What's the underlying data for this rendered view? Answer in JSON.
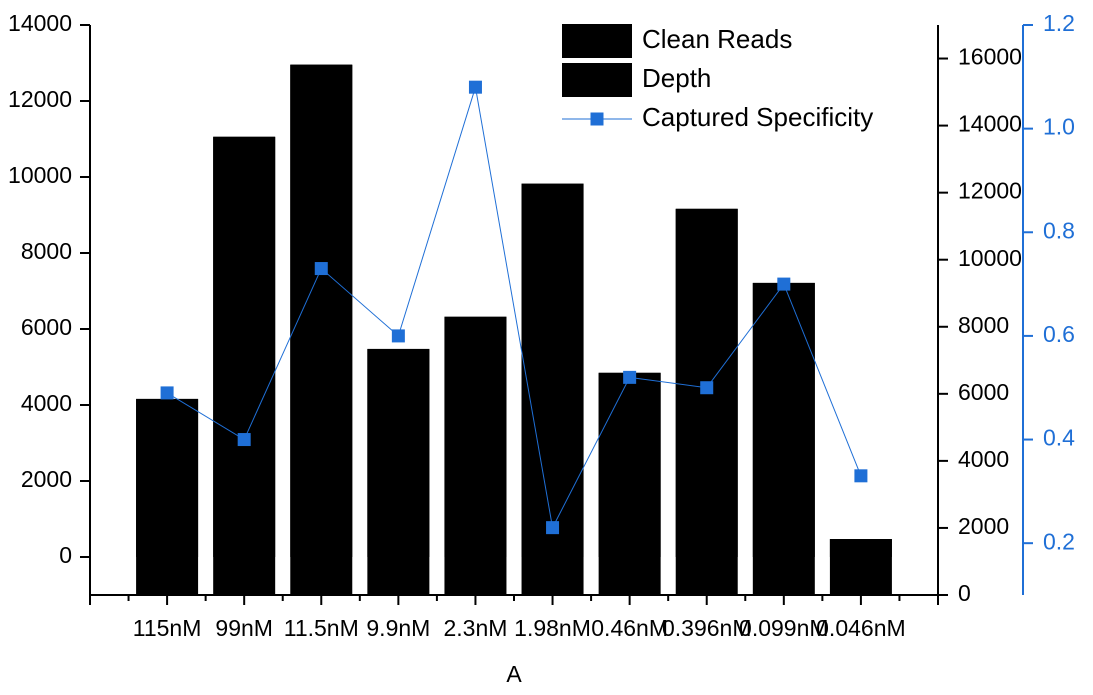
{
  "chart_data": {
    "type": "bar",
    "x_label": "A",
    "categories": [
      "115nM",
      "99nM",
      "11.5nM",
      "9.9nM",
      "2.3nM",
      "1.98nM",
      "0.46nM",
      "0.396nM",
      "0.099nM",
      "0.046nM"
    ],
    "series": [
      {
        "name": "Clean Reads",
        "type": "bar",
        "color": "#000000",
        "axis": "y",
        "values": [
          4150,
          11050,
          12950,
          5470,
          6320,
          9820,
          4840,
          9160,
          7210,
          470
        ]
      },
      {
        "name": "Depth",
        "type": "bar",
        "color": "#000000",
        "axis": "y2",
        "values": [
          5850,
          13670,
          15820,
          7340,
          8300,
          12270,
          6630,
          11520,
          9310,
          1670
        ]
      },
      {
        "name": "Captured Specificity",
        "type": "line",
        "color": "#1f6fd6",
        "axis": "y3",
        "values": [
          0.49,
          0.4,
          0.73,
          0.6,
          1.08,
          0.23,
          0.52,
          0.5,
          0.7,
          0.33
        ]
      }
    ],
    "ylim": [
      -1000,
      14000
    ],
    "yticks": [
      0,
      2000,
      4000,
      6000,
      8000,
      10000,
      12000,
      14000
    ],
    "y2lim": [
      0,
      17000
    ],
    "y2ticks": [
      0,
      2000,
      4000,
      6000,
      8000,
      10000,
      12000,
      14000,
      16000
    ],
    "y3lim": [
      0.1,
      1.2
    ],
    "y3ticks": [
      0.2,
      0.4,
      0.6,
      0.8,
      {
        "value": 1,
        "label": "1.0"
      },
      1.2
    ],
    "legend": "top-right"
  }
}
